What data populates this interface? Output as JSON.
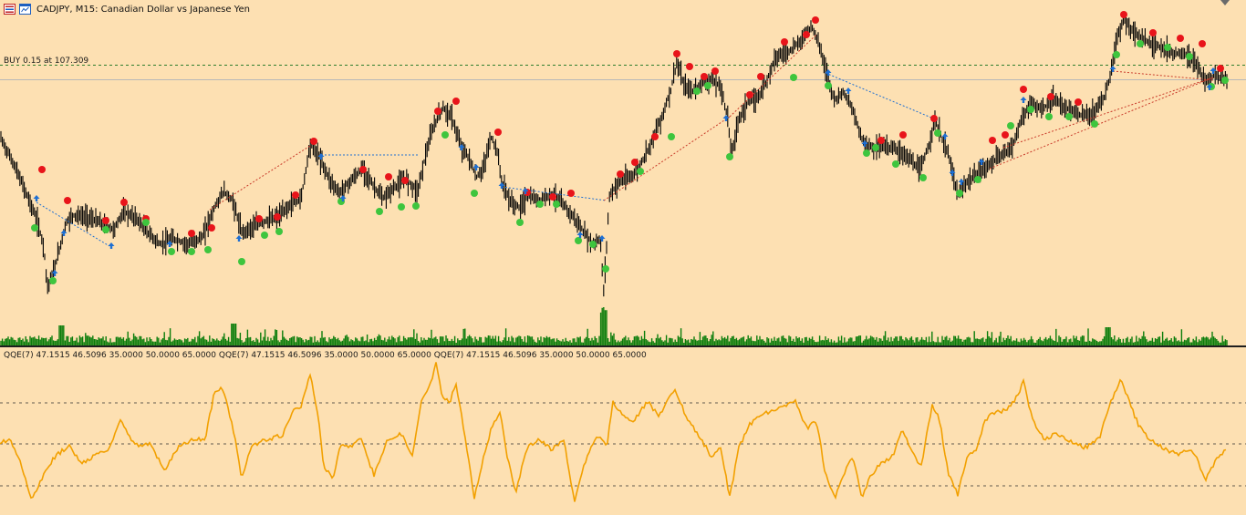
{
  "window": {
    "symbol_label": "CADJPY, M15:  Canadian Dollar vs Japanese Yen"
  },
  "icons": [
    "chart-list-icon",
    "chart-window-icon"
  ],
  "colors": {
    "background": "#FDE0B2",
    "candles": "#000000",
    "buy_dot": "#E8141A",
    "sell_dot": "#3EC53E",
    "arrow_up": "#1E6FD2",
    "volume": "#0B7D0B",
    "qqe_line": "#F2A000",
    "level_line": "#2E2E2E"
  },
  "main": {
    "trade_label": "BUY 0.15 at 107.309"
  },
  "indicator": {
    "label": "QQE(7) 47.1515 46.5096 35.0000 50.0000 65.0000 QQE(7) 47.1515 46.5096 35.0000 50.0000 65.0000 QQE(7) 47.1515 46.5096 35.0000 50.0000 65.0000",
    "levels": [
      35.0,
      50.0,
      65.0
    ]
  }
}
